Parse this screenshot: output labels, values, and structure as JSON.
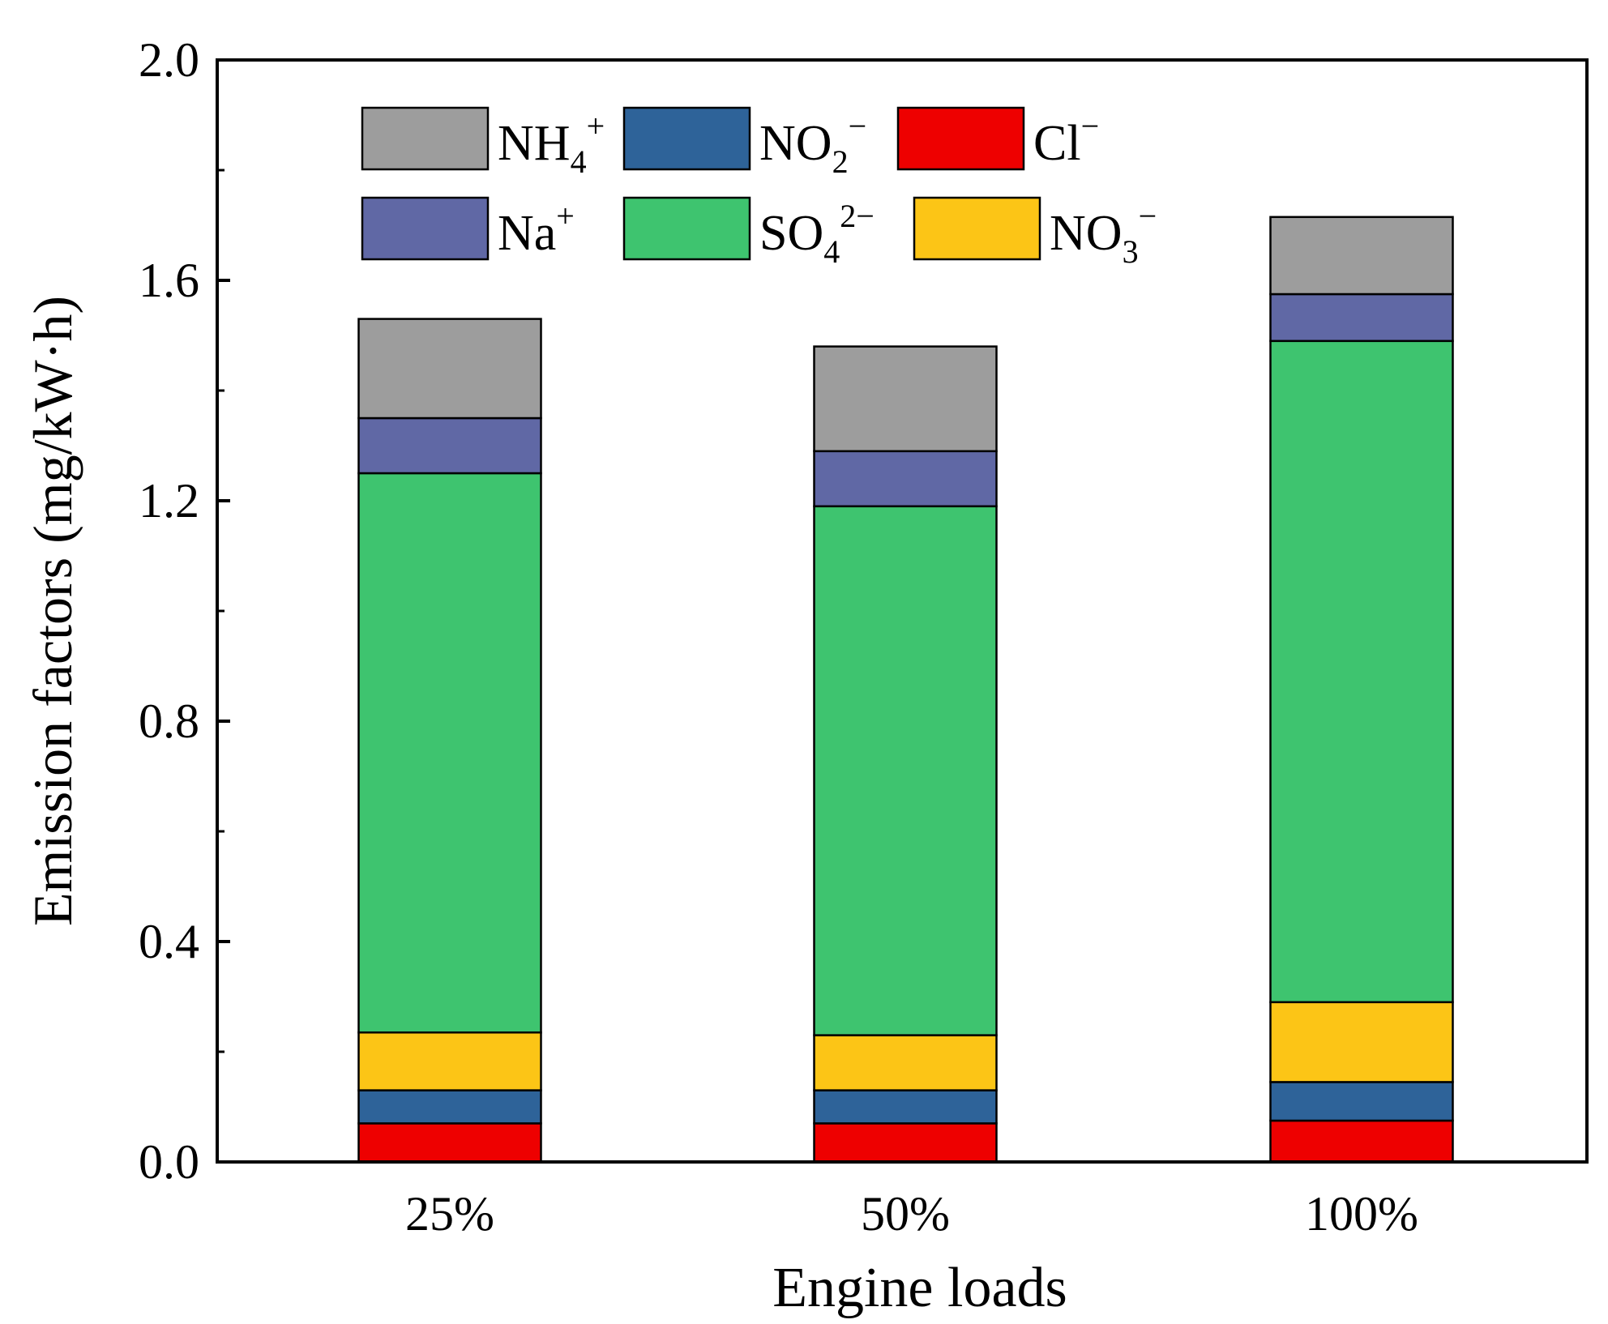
{
  "chart_data": {
    "type": "bar",
    "stacked": true,
    "title": "",
    "xlabel": "Engine loads",
    "ylabel": "Emission factors (mg/kW·h)",
    "categories": [
      "25%",
      "50%",
      "100%"
    ],
    "ylim": [
      0,
      2.0
    ],
    "yticks": [
      0.0,
      0.4,
      0.8,
      1.2,
      1.6,
      2.0
    ],
    "ytick_labels": [
      "0.0",
      "0.4",
      "0.8",
      "1.2",
      "1.6",
      "2.0"
    ],
    "legend_position": "top-left",
    "series": [
      {
        "name": "Cl⁻",
        "base": "Cl",
        "sub": "",
        "sup": "−",
        "color": "#ee0000",
        "values": [
          0.07,
          0.07,
          0.075
        ]
      },
      {
        "name": "NO₂⁻",
        "base": "NO",
        "sub": "2",
        "sup": "−",
        "color": "#2e6399",
        "values": [
          0.06,
          0.06,
          0.07
        ]
      },
      {
        "name": "NO₃⁻",
        "base": "NO",
        "sub": "3",
        "sup": "−",
        "color": "#fcc516",
        "values": [
          0.105,
          0.1,
          0.145
        ]
      },
      {
        "name": "SO₄²⁻",
        "base": "SO",
        "sub": "4",
        "sup": "2−",
        "color": "#3ec46f",
        "values": [
          1.015,
          0.96,
          1.2
        ]
      },
      {
        "name": "Na⁺",
        "base": "Na",
        "sub": "",
        "sup": "+",
        "color": "#6068a5",
        "values": [
          0.1,
          0.1,
          0.085
        ]
      },
      {
        "name": "NH₄⁺",
        "base": "NH",
        "sub": "4",
        "sup": "+",
        "color": "#9d9d9d",
        "values": [
          0.18,
          0.19,
          0.14
        ]
      }
    ],
    "legend_order": [
      5,
      1,
      0,
      4,
      3,
      2
    ]
  }
}
